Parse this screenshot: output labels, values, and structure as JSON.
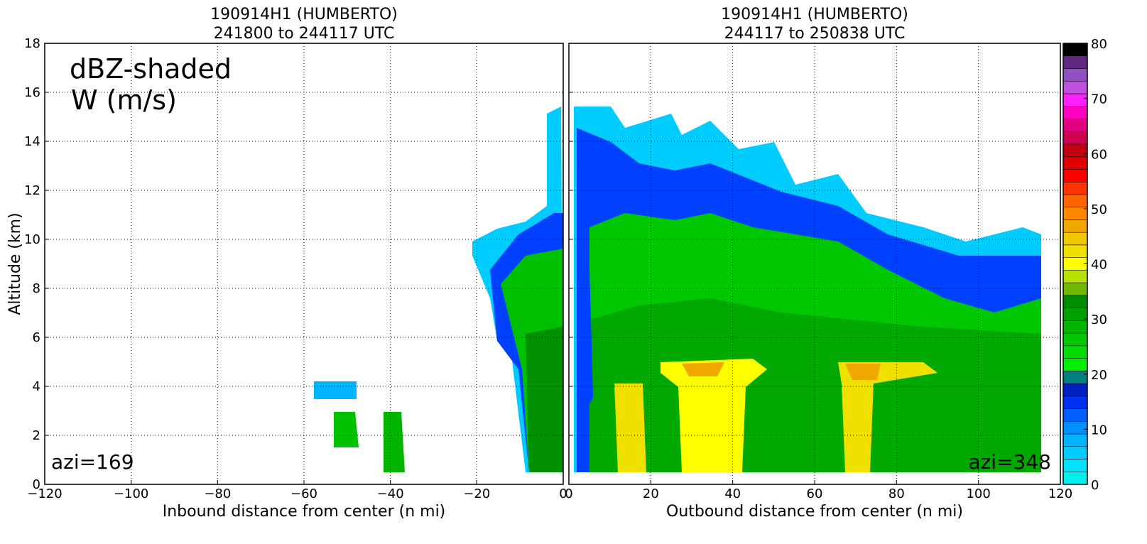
{
  "chart_data": [
    {
      "type": "field",
      "title": "190914H1 (HUMBERTO)",
      "subtitle": "241800 to 244117 UTC",
      "x_label": "Inbound distance from center (n mi)",
      "y_label": "Altitude (km)",
      "xlim": [
        -120,
        0
      ],
      "ylim": [
        0,
        18
      ],
      "xticks": [
        {
          "value": -120,
          "label": "−120"
        },
        {
          "value": -100,
          "label": "−100"
        },
        {
          "value": -80,
          "label": "−80"
        },
        {
          "value": -60,
          "label": "−60"
        },
        {
          "value": -40,
          "label": "−40"
        },
        {
          "value": -20,
          "label": "−20"
        },
        0
      ],
      "yticks": [
        0,
        2,
        4,
        6,
        8,
        10,
        12,
        14,
        16,
        18
      ],
      "grid": true,
      "annotations": [
        "dBZ-shaded",
        "W (m/s)",
        "azi=169"
      ]
    },
    {
      "type": "field",
      "title": "190914H1 (HUMBERTO)",
      "subtitle": "244117 to 250838 UTC",
      "x_label": "Outbound distance from center (n mi)",
      "xlim": [
        0,
        120
      ],
      "ylim": [
        0,
        18
      ],
      "xticks": [
        0,
        20,
        40,
        60,
        80,
        100,
        120
      ],
      "yticks": [
        0,
        2,
        4,
        6,
        8,
        10,
        12,
        14,
        16,
        18
      ],
      "grid": true,
      "annotations": [
        "azi=348"
      ]
    },
    {
      "type": "colorbar",
      "ylim": [
        0,
        80
      ],
      "yticks": [
        0,
        10,
        20,
        30,
        40,
        50,
        60,
        70,
        80
      ],
      "colors": [
        "#00f0f0",
        "#00e0ff",
        "#00ccff",
        "#00b4ff",
        "#0090ff",
        "#0060ff",
        "#0030f0",
        "#0020c0",
        "#00807f",
        "#00ee00",
        "#00dc00",
        "#00c800",
        "#00b400",
        "#00a000",
        "#008c00",
        "#70b800",
        "#b8e000",
        "#ffff00",
        "#f0e000",
        "#f0c800",
        "#f0a800",
        "#ff8800",
        "#ff6600",
        "#ff3300",
        "#ff0000",
        "#e00000",
        "#c00010",
        "#d00050",
        "#e00080",
        "#ff00c0",
        "#ff20ff",
        "#c050e0",
        "#9050c0",
        "#602880",
        "#000000"
      ]
    }
  ]
}
